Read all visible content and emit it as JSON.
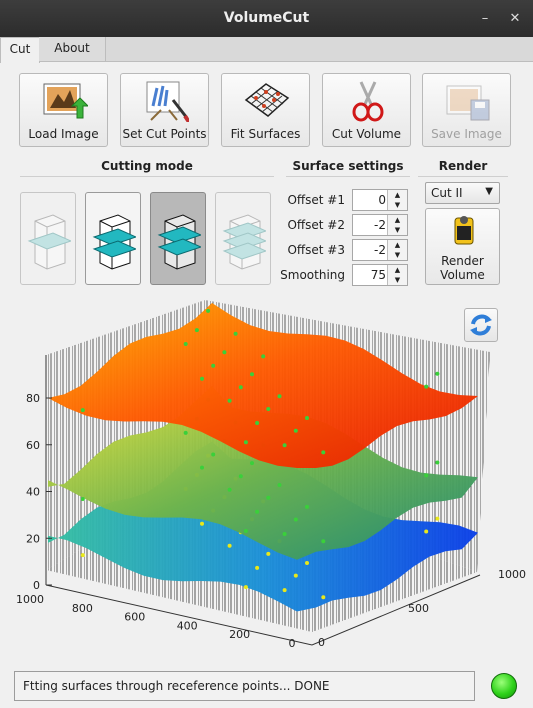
{
  "window": {
    "title": "VolumeCut",
    "min_icon": "minimize-icon",
    "close_icon": "close-icon"
  },
  "tabs": [
    {
      "label": "Cut"
    },
    {
      "label": "About"
    }
  ],
  "toolbar": [
    {
      "label": "Load Image",
      "icon": "load-image-icon"
    },
    {
      "label": "Set Cut Points",
      "icon": "set-cut-points-icon"
    },
    {
      "label": "Fit Surfaces",
      "icon": "fit-surfaces-icon"
    },
    {
      "label": "Cut Volume",
      "icon": "scissors-icon"
    },
    {
      "label": "Save Image",
      "icon": "save-image-icon",
      "enabled": false
    }
  ],
  "sections": {
    "cutting_mode": "Cutting mode",
    "surface_settings": "Surface settings",
    "render": "Render"
  },
  "cutting_modes": [
    {
      "icon": "one-cut-mode-icon",
      "state": "disabled"
    },
    {
      "icon": "two-cut-mode-icon",
      "state": "enabled"
    },
    {
      "icon": "three-cut-mode-icon",
      "state": "selected"
    },
    {
      "icon": "four-cut-mode-icon",
      "state": "disabled"
    }
  ],
  "surface_settings": [
    {
      "label": "Offset #1",
      "value": "0"
    },
    {
      "label": "Offset #2",
      "value": "-2"
    },
    {
      "label": "Offset #3",
      "value": "-2"
    },
    {
      "label": "Smoothing",
      "value": "75"
    }
  ],
  "render": {
    "selected": "Cut II",
    "button_line1": "Render",
    "button_line2": "Volume",
    "icon": "render-film-icon"
  },
  "refresh_icon": "refresh-icon",
  "plot": {
    "z_ticks": [
      "0",
      "20",
      "40",
      "60",
      "80"
    ],
    "x_ticks": [
      "1000",
      "800",
      "600",
      "400",
      "200",
      "0"
    ],
    "y_ticks": [
      "0",
      "500",
      "1000"
    ],
    "surfaces": [
      {
        "name": "",
        "level": 80,
        "color": "#ff5a00"
      },
      {
        "name": "",
        "level": 42,
        "color": "#7cbf48"
      },
      {
        "name": "",
        "level": 18,
        "color": "#1a7fd8"
      }
    ]
  },
  "status": {
    "text": "Ftting surfaces through receference points... DONE",
    "indicator_color": "#2ed21a"
  }
}
